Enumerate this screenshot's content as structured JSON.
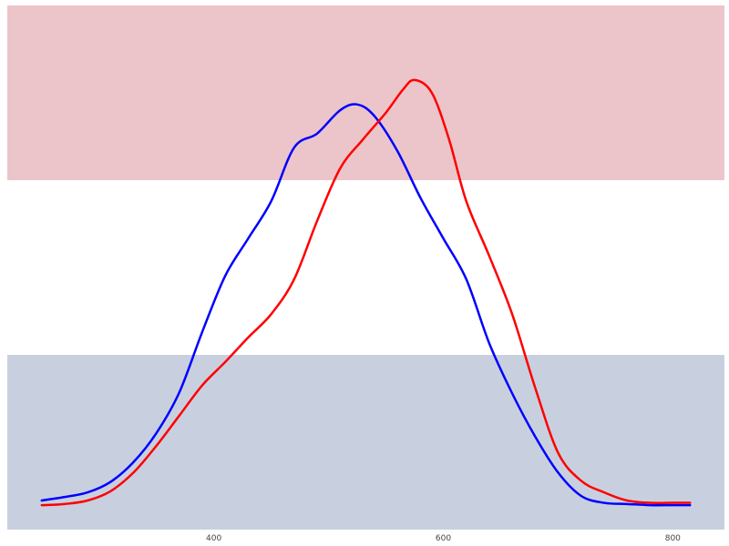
{
  "chart_data": {
    "type": "line",
    "title": "",
    "xlabel": "",
    "ylabel": "",
    "xlim": [
      220,
      845
    ],
    "ylim": [
      0,
      0.0045
    ],
    "x_ticks": [
      {
        "value": 400,
        "label": "400"
      },
      {
        "value": 600,
        "label": "600"
      },
      {
        "value": 800,
        "label": "800"
      }
    ],
    "grid": false,
    "legend": "none",
    "background_bands": [
      {
        "y_from": 0,
        "y_to": 0.0015,
        "color": "#c8d0e0"
      },
      {
        "y_from": 0.0015,
        "y_to": 0.003,
        "color": "#ffffff"
      },
      {
        "y_from": 0.003,
        "y_to": 0.0045,
        "color": "#ebc5c9"
      }
    ],
    "series": [
      {
        "color": "#0000ff",
        "x": [
          250,
          270,
          290,
          310,
          330,
          350,
          370,
          390,
          410,
          430,
          450,
          470,
          490,
          510,
          525,
          540,
          560,
          580,
          600,
          620,
          640,
          660,
          680,
          700,
          720,
          740,
          760,
          780,
          800,
          815
        ],
        "y": [
          0.00025,
          0.00028,
          0.00032,
          0.00041,
          0.00058,
          0.00083,
          0.00118,
          0.0017,
          0.00218,
          0.0025,
          0.00282,
          0.00328,
          0.0034,
          0.0036,
          0.00365,
          0.00355,
          0.00325,
          0.00285,
          0.0025,
          0.00215,
          0.0016,
          0.00117,
          0.0008,
          0.00049,
          0.00029,
          0.00023,
          0.00022,
          0.00021,
          0.00021,
          0.00021
        ]
      },
      {
        "color": "#ff0000",
        "x": [
          250,
          270,
          290,
          310,
          330,
          350,
          370,
          390,
          410,
          430,
          450,
          470,
          490,
          510,
          530,
          550,
          565,
          575,
          590,
          605,
          620,
          640,
          660,
          680,
          700,
          720,
          740,
          760,
          780,
          800,
          815
        ],
        "y": [
          0.00021,
          0.00022,
          0.00025,
          0.00033,
          0.00049,
          0.00072,
          0.00098,
          0.00124,
          0.00144,
          0.00165,
          0.00185,
          0.00215,
          0.00265,
          0.0031,
          0.00335,
          0.00358,
          0.00378,
          0.00386,
          0.00375,
          0.00335,
          0.00282,
          0.00235,
          0.00185,
          0.00122,
          0.00066,
          0.00042,
          0.00032,
          0.00025,
          0.00023,
          0.00023,
          0.00023
        ]
      }
    ]
  }
}
